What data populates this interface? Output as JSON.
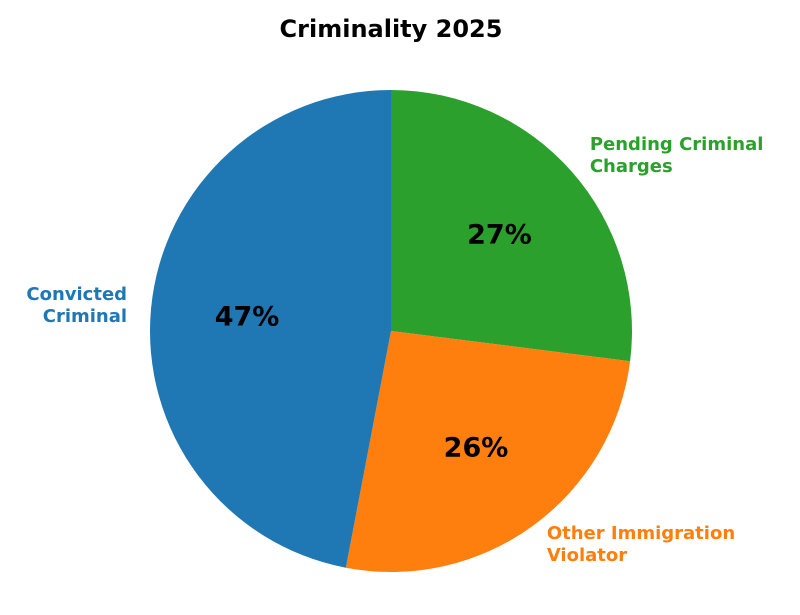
{
  "chart_data": {
    "type": "pie",
    "title": "Criminality 2025",
    "background": "#ffffff",
    "title_color": "#000000",
    "pct_label_color": "#000000",
    "legend": "none",
    "start_angle": "top",
    "direction": "clockwise",
    "label_distance": 1.1,
    "pct_distance": 0.6,
    "slices": [
      {
        "label": "Pending Criminal\nCharges",
        "value": 27,
        "pct_label": "27%",
        "color": "#2ca02c"
      },
      {
        "label": "Other Immigration\nViolator",
        "value": 26,
        "pct_label": "26%",
        "color": "#ff7f0e"
      },
      {
        "label": "Convicted\nCriminal",
        "value": 47,
        "pct_label": "47%",
        "color": "#1f77b4"
      }
    ]
  }
}
